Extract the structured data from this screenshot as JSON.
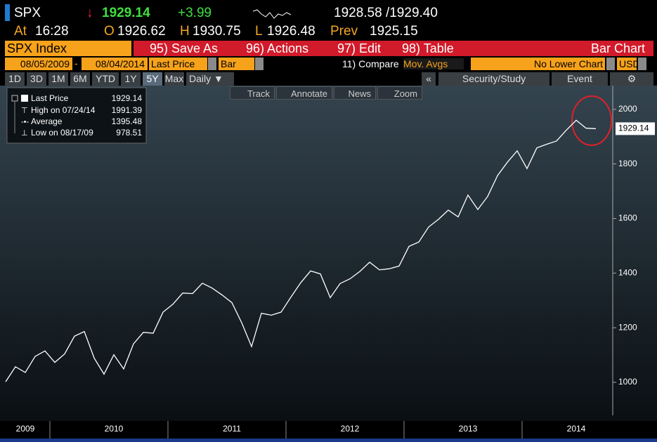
{
  "header": {
    "ticker": "SPX",
    "arrow": "↓",
    "last": "1929.14",
    "change": "+3.99",
    "bid_ask": "1928.58 /1929.40",
    "time_label": "At",
    "time": "16:28",
    "open_label": "O",
    "open": "1926.62",
    "high_label": "H",
    "high": "1930.75",
    "low_label": "L",
    "low": "1926.48",
    "prev_label": "Prev",
    "prev": "1925.15"
  },
  "menu": {
    "security": "SPX Index",
    "items": [
      "95) Save As",
      "96) Actions",
      "97) Edit",
      "98) Table"
    ],
    "view": "Bar Chart"
  },
  "controls": {
    "start_date": "08/05/2009",
    "separator": "-",
    "end_date": "08/04/2014",
    "field": "Last Price",
    "style": "Bar",
    "compare": "11) Compare",
    "mov_avgs": "Mov. Avgs",
    "lower_chart": "No Lower Chart",
    "currency": "USD"
  },
  "periods": [
    "1D",
    "3D",
    "1M",
    "6M",
    "YTD",
    "1Y",
    "5Y",
    "Max"
  ],
  "frequency": "Daily ▼",
  "right_tools": {
    "collapse": "«",
    "study": "Security/Study",
    "event": "Event"
  },
  "chart_tools": [
    "Track",
    "Annotate",
    "News",
    "Zoom"
  ],
  "chart_data": {
    "type": "line",
    "categories": [
      null,
      null,
      "2009",
      null,
      null,
      null,
      null,
      null,
      null,
      null,
      null,
      "2010",
      null,
      null,
      null,
      null,
      null,
      null,
      null,
      null,
      null,
      null,
      null,
      "2011",
      null,
      null,
      null,
      null,
      null,
      null,
      null,
      null,
      null,
      null,
      null,
      "2012",
      null,
      null,
      null,
      null,
      null,
      null,
      null,
      null,
      null,
      null,
      null,
      "2013",
      null,
      null,
      null,
      null,
      null,
      null,
      null,
      null,
      null,
      null,
      "2014",
      null,
      null
    ],
    "series": [
      {
        "name": "Last Price",
        "color": "#ffffff",
        "values": [
          1002,
          1057,
          1036,
          1095,
          1115,
          1073,
          1104,
          1169,
          1186,
          1089,
          1030,
          1101,
          1049,
          1141,
          1183,
          1180,
          1257,
          1286,
          1327,
          1325,
          1363,
          1345,
          1320,
          1292,
          1218,
          1131,
          1253,
          1246,
          1257,
          1312,
          1365,
          1408,
          1397,
          1310,
          1362,
          1379,
          1406,
          1440,
          1412,
          1416,
          1426,
          1498,
          1514,
          1569,
          1597,
          1631,
          1606,
          1686,
          1633,
          1681,
          1757,
          1806,
          1848,
          1783,
          1859,
          1872,
          1884,
          1924,
          1960,
          1931,
          1929.14
        ]
      }
    ],
    "stats": [
      {
        "label": "High on 07/24/14",
        "value": 1991.39
      },
      {
        "label": "Average",
        "value": 1395.48
      },
      {
        "label": "Low on 08/17/09",
        "value": 978.51
      }
    ],
    "ylim": [
      879,
      2087
    ],
    "yticks": [
      1000,
      1200,
      1400,
      1600,
      1800,
      2000
    ]
  }
}
